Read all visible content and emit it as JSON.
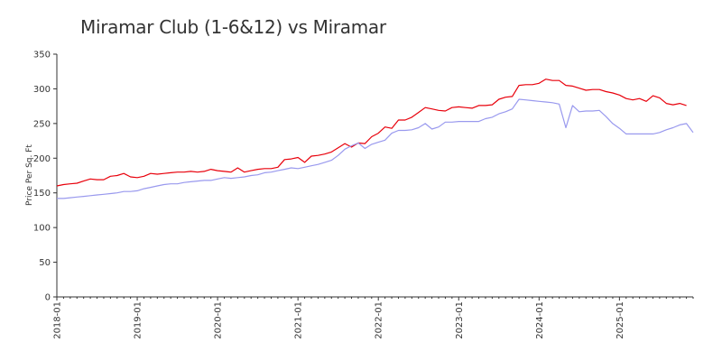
{
  "chart_data": {
    "type": "line",
    "title": "Miramar Club (1-6&12) vs Miramar",
    "xlabel": "",
    "ylabel": "Price Per Sq. Ft",
    "ylim": [
      0,
      350
    ],
    "yticks": [
      0,
      50,
      100,
      150,
      200,
      250,
      300,
      350
    ],
    "xlim": [
      "2018-01",
      "2025-12"
    ],
    "xticks": [
      "2018-01",
      "2019-01",
      "2020-01",
      "2021-01",
      "2022-01",
      "2023-01",
      "2024-01",
      "2025-01"
    ],
    "grid": false,
    "legend": "none",
    "series": [
      {
        "color": "#e8000b",
        "points": [
          [
            "2018-01",
            160
          ],
          [
            "2018-02",
            162
          ],
          [
            "2018-03",
            163
          ],
          [
            "2018-04",
            164
          ],
          [
            "2018-05",
            167
          ],
          [
            "2018-06",
            170
          ],
          [
            "2018-07",
            169
          ],
          [
            "2018-08",
            169
          ],
          [
            "2018-09",
            174
          ],
          [
            "2018-10",
            175
          ],
          [
            "2018-11",
            178
          ],
          [
            "2018-12",
            173
          ],
          [
            "2019-01",
            172
          ],
          [
            "2019-02",
            174
          ],
          [
            "2019-03",
            178
          ],
          [
            "2019-04",
            177
          ],
          [
            "2019-05",
            178
          ],
          [
            "2019-06",
            179
          ],
          [
            "2019-07",
            180
          ],
          [
            "2019-08",
            180
          ],
          [
            "2019-09",
            181
          ],
          [
            "2019-10",
            180
          ],
          [
            "2019-11",
            181
          ],
          [
            "2019-12",
            184
          ],
          [
            "2020-01",
            182
          ],
          [
            "2020-02",
            181
          ],
          [
            "2020-03",
            180
          ],
          [
            "2020-04",
            186
          ],
          [
            "2020-05",
            180
          ],
          [
            "2020-06",
            182
          ],
          [
            "2020-07",
            184
          ],
          [
            "2020-08",
            185
          ],
          [
            "2020-09",
            185
          ],
          [
            "2020-10",
            187
          ],
          [
            "2020-11",
            198
          ],
          [
            "2020-12",
            199
          ],
          [
            "2021-01",
            201
          ],
          [
            "2021-02",
            194
          ],
          [
            "2021-03",
            203
          ],
          [
            "2021-04",
            204
          ],
          [
            "2021-05",
            206
          ],
          [
            "2021-06",
            209
          ],
          [
            "2021-07",
            215
          ],
          [
            "2021-08",
            221
          ],
          [
            "2021-09",
            216
          ],
          [
            "2021-10",
            222
          ],
          [
            "2021-11",
            221
          ],
          [
            "2021-12",
            231
          ],
          [
            "2022-01",
            236
          ],
          [
            "2022-02",
            245
          ],
          [
            "2022-03",
            243
          ],
          [
            "2022-04",
            255
          ],
          [
            "2022-05",
            255
          ],
          [
            "2022-06",
            259
          ],
          [
            "2022-07",
            266
          ],
          [
            "2022-08",
            273
          ],
          [
            "2022-09",
            271
          ],
          [
            "2022-10",
            269
          ],
          [
            "2022-11",
            268
          ],
          [
            "2022-12",
            273
          ],
          [
            "2023-01",
            274
          ],
          [
            "2023-02",
            273
          ],
          [
            "2023-03",
            272
          ],
          [
            "2023-04",
            276
          ],
          [
            "2023-05",
            276
          ],
          [
            "2023-06",
            277
          ],
          [
            "2023-07",
            285
          ],
          [
            "2023-08",
            288
          ],
          [
            "2023-09",
            289
          ],
          [
            "2023-10",
            305
          ],
          [
            "2023-11",
            306
          ],
          [
            "2023-12",
            306
          ],
          [
            "2024-01",
            308
          ],
          [
            "2024-02",
            314
          ],
          [
            "2024-03",
            312
          ],
          [
            "2024-04",
            312
          ],
          [
            "2024-05",
            305
          ],
          [
            "2024-06",
            304
          ],
          [
            "2024-07",
            301
          ],
          [
            "2024-08",
            298
          ],
          [
            "2024-09",
            299
          ],
          [
            "2024-10",
            299
          ],
          [
            "2024-11",
            296
          ],
          [
            "2024-12",
            294
          ],
          [
            "2025-01",
            291
          ],
          [
            "2025-02",
            286
          ],
          [
            "2025-03",
            284
          ],
          [
            "2025-04",
            286
          ],
          [
            "2025-05",
            282
          ],
          [
            "2025-06",
            290
          ],
          [
            "2025-07",
            287
          ],
          [
            "2025-08",
            279
          ],
          [
            "2025-09",
            277
          ],
          [
            "2025-10",
            279
          ],
          [
            "2025-11",
            276
          ]
        ]
      },
      {
        "color": "#9999ee",
        "points": [
          [
            "2018-01",
            142
          ],
          [
            "2018-02",
            142
          ],
          [
            "2018-03",
            143
          ],
          [
            "2018-04",
            144
          ],
          [
            "2018-05",
            145
          ],
          [
            "2018-06",
            146
          ],
          [
            "2018-07",
            147
          ],
          [
            "2018-08",
            148
          ],
          [
            "2018-09",
            149
          ],
          [
            "2018-10",
            150
          ],
          [
            "2018-11",
            152
          ],
          [
            "2018-12",
            152
          ],
          [
            "2019-01",
            153
          ],
          [
            "2019-02",
            156
          ],
          [
            "2019-03",
            158
          ],
          [
            "2019-04",
            160
          ],
          [
            "2019-05",
            162
          ],
          [
            "2019-06",
            163
          ],
          [
            "2019-07",
            163
          ],
          [
            "2019-08",
            165
          ],
          [
            "2019-09",
            166
          ],
          [
            "2019-10",
            167
          ],
          [
            "2019-11",
            168
          ],
          [
            "2019-12",
            168
          ],
          [
            "2020-01",
            170
          ],
          [
            "2020-02",
            172
          ],
          [
            "2020-03",
            171
          ],
          [
            "2020-04",
            172
          ],
          [
            "2020-05",
            173
          ],
          [
            "2020-06",
            175
          ],
          [
            "2020-07",
            176
          ],
          [
            "2020-08",
            179
          ],
          [
            "2020-09",
            180
          ],
          [
            "2020-10",
            182
          ],
          [
            "2020-11",
            184
          ],
          [
            "2020-12",
            186
          ],
          [
            "2021-01",
            185
          ],
          [
            "2021-02",
            187
          ],
          [
            "2021-03",
            189
          ],
          [
            "2021-04",
            191
          ],
          [
            "2021-05",
            194
          ],
          [
            "2021-06",
            197
          ],
          [
            "2021-07",
            204
          ],
          [
            "2021-08",
            213
          ],
          [
            "2021-09",
            218
          ],
          [
            "2021-10",
            222
          ],
          [
            "2021-11",
            214
          ],
          [
            "2021-12",
            220
          ],
          [
            "2022-01",
            223
          ],
          [
            "2022-02",
            226
          ],
          [
            "2022-03",
            236
          ],
          [
            "2022-04",
            240
          ],
          [
            "2022-05",
            240
          ],
          [
            "2022-06",
            241
          ],
          [
            "2022-07",
            244
          ],
          [
            "2022-08",
            250
          ],
          [
            "2022-09",
            242
          ],
          [
            "2022-10",
            245
          ],
          [
            "2022-11",
            252
          ],
          [
            "2022-12",
            252
          ],
          [
            "2023-01",
            253
          ],
          [
            "2023-02",
            253
          ],
          [
            "2023-03",
            253
          ],
          [
            "2023-04",
            253
          ],
          [
            "2023-05",
            257
          ],
          [
            "2023-06",
            259
          ],
          [
            "2023-07",
            264
          ],
          [
            "2023-08",
            267
          ],
          [
            "2023-09",
            271
          ],
          [
            "2023-10",
            285
          ],
          [
            "2023-11",
            284
          ],
          [
            "2023-12",
            283
          ],
          [
            "2024-01",
            282
          ],
          [
            "2024-02",
            281
          ],
          [
            "2024-03",
            280
          ],
          [
            "2024-04",
            278
          ],
          [
            "2024-05",
            244
          ],
          [
            "2024-06",
            276
          ],
          [
            "2024-07",
            267
          ],
          [
            "2024-08",
            268
          ],
          [
            "2024-09",
            268
          ],
          [
            "2024-10",
            269
          ],
          [
            "2024-11",
            260
          ],
          [
            "2024-12",
            250
          ],
          [
            "2025-01",
            243
          ],
          [
            "2025-02",
            235
          ],
          [
            "2025-03",
            235
          ],
          [
            "2025-04",
            235
          ],
          [
            "2025-05",
            235
          ],
          [
            "2025-06",
            235
          ],
          [
            "2025-07",
            237
          ],
          [
            "2025-08",
            241
          ],
          [
            "2025-09",
            244
          ],
          [
            "2025-10",
            248
          ],
          [
            "2025-11",
            250
          ],
          [
            "2025-12",
            237
          ]
        ]
      }
    ]
  }
}
